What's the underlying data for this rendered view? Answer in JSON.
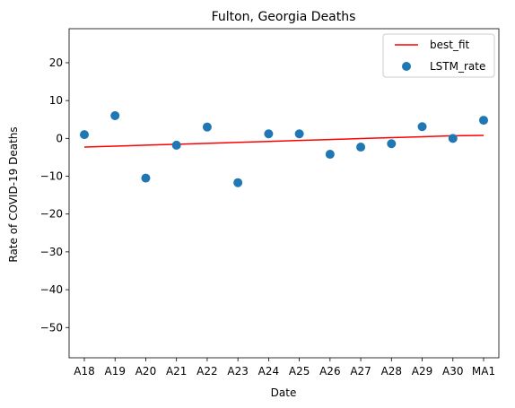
{
  "chart_data": {
    "type": "scatter",
    "title": "Fulton, Georgia Deaths",
    "xlabel": "Date",
    "ylabel": "Rate of COVID-19 Deaths",
    "categories": [
      "A18",
      "A19",
      "A20",
      "A21",
      "A22",
      "A23",
      "A24",
      "A25",
      "A26",
      "A27",
      "A28",
      "A29",
      "A30",
      "MA1"
    ],
    "ylim": [
      -58,
      29
    ],
    "yticks": [
      20,
      10,
      0,
      -10,
      -20,
      -30,
      -40,
      -50
    ],
    "grid": false,
    "legend_position": "top-right",
    "series": [
      {
        "name": "best_fit",
        "kind": "line",
        "color": "#ff0000",
        "values": [
          -2.3,
          -2.05,
          -1.8,
          -1.55,
          -1.3,
          -1.05,
          -0.8,
          -0.55,
          -0.3,
          -0.05,
          0.2,
          0.45,
          0.7,
          0.8
        ]
      },
      {
        "name": "LSTM_rate",
        "kind": "scatter",
        "color": "#1f77b4",
        "values": [
          1.0,
          6.0,
          -10.5,
          -1.8,
          3.0,
          -11.7,
          1.2,
          1.2,
          -4.2,
          -2.3,
          -1.4,
          3.1,
          0.0,
          4.8
        ]
      }
    ]
  }
}
